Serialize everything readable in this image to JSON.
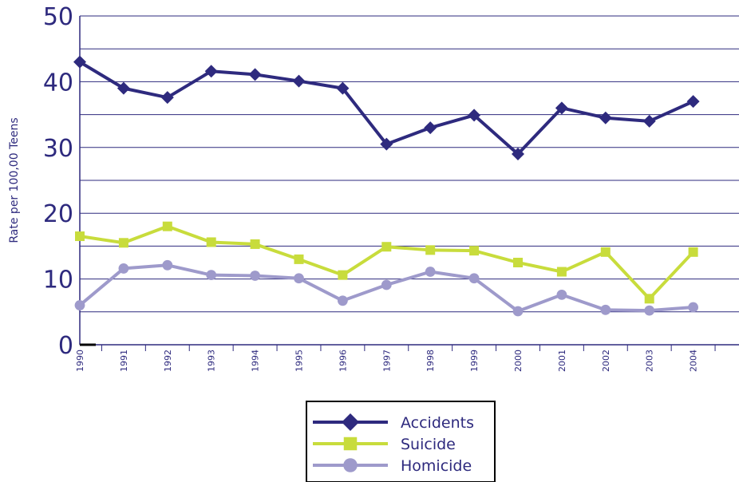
{
  "chart_data": {
    "type": "line",
    "title": "",
    "xlabel": "",
    "ylabel": "Rate per 100,00 Teens",
    "ylim": [
      0,
      50
    ],
    "yticks": [
      "0",
      "10",
      "20",
      "30",
      "40",
      "50"
    ],
    "categories": [
      "1990",
      "1991",
      "1992",
      "1993",
      "1994",
      "1995",
      "1996",
      "1997",
      "1998",
      "1999",
      "2000",
      "2001",
      "2002",
      "2003",
      "2004"
    ],
    "grid": true,
    "legend_position": "bottom-center",
    "series": [
      {
        "name": "Accidents",
        "color": "#2e2a7e",
        "marker": "diamond",
        "values": [
          43,
          39,
          37.6,
          41.6,
          41.1,
          40.1,
          39,
          30.5,
          33,
          34.9,
          29,
          36,
          34.5,
          34,
          37
        ]
      },
      {
        "name": "Suicide",
        "color": "#c8dc3c",
        "marker": "square",
        "values": [
          16.5,
          15.5,
          18,
          15.6,
          15.3,
          13,
          10.6,
          14.9,
          14.4,
          14.3,
          12.5,
          11.1,
          14.1,
          7,
          14.1
        ]
      },
      {
        "name": "Homicide",
        "color": "#9e9acb",
        "marker": "circle",
        "values": [
          6,
          11.6,
          12.1,
          10.6,
          10.5,
          10.1,
          6.7,
          9.1,
          11.1,
          10.1,
          5.1,
          7.6,
          5.3,
          5.2,
          5.7
        ]
      }
    ]
  }
}
